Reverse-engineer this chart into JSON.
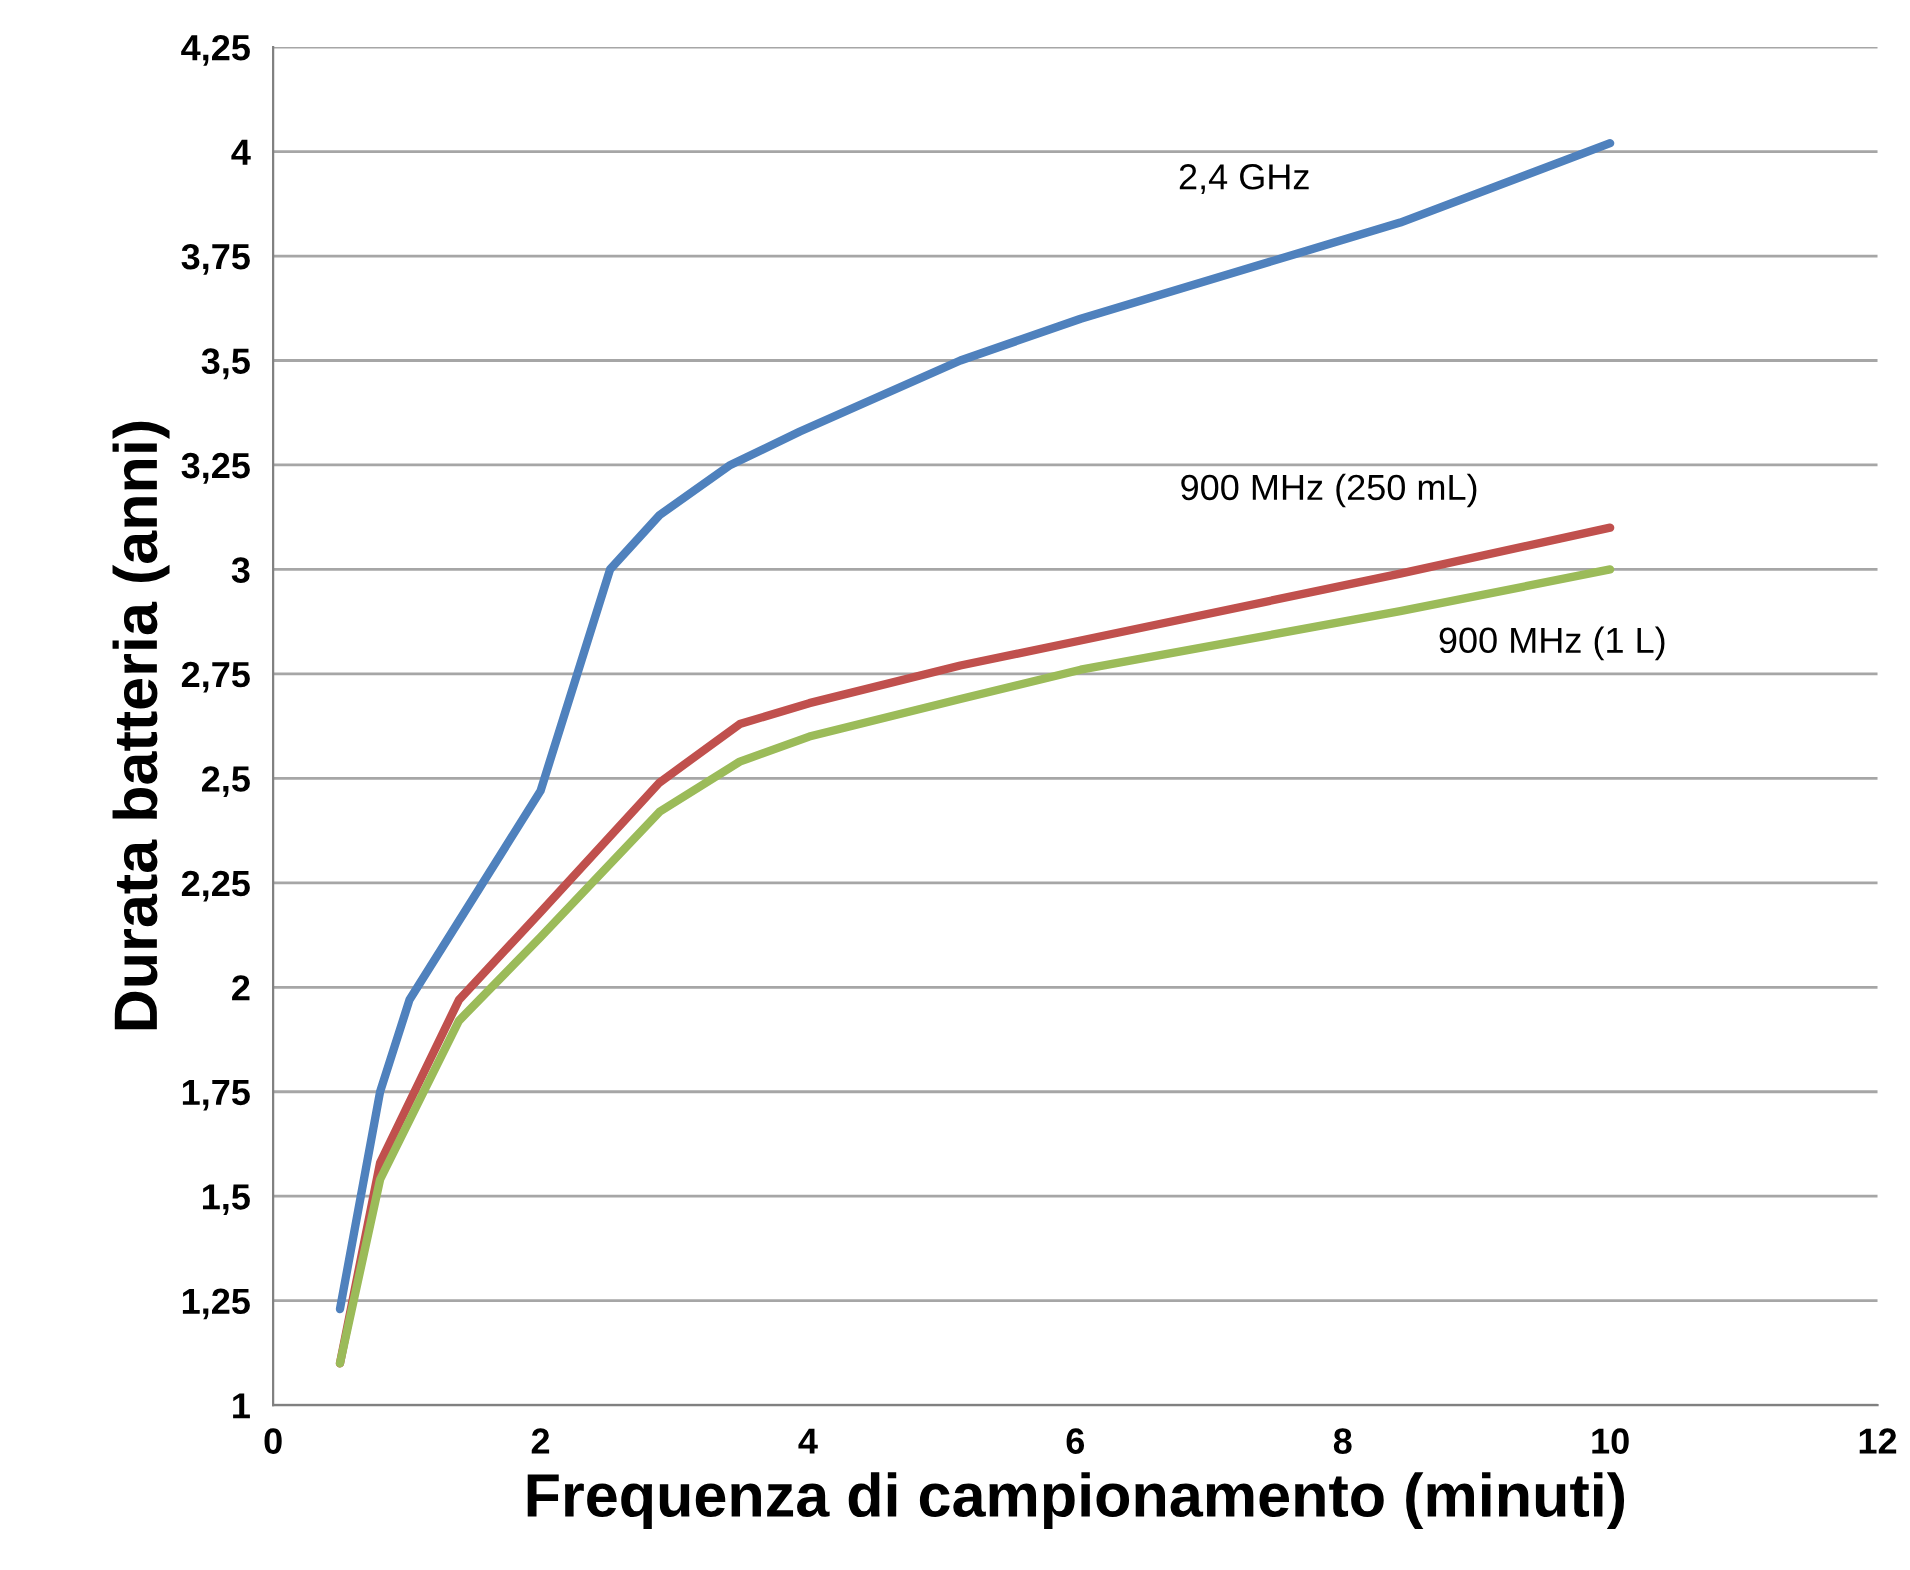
{
  "chart_data": {
    "type": "line",
    "xlabel": "Frequenza di campionamento (minuti)",
    "ylabel": "Durata batteria (anni)",
    "xlim": [
      0,
      12
    ],
    "xticks": [
      0,
      2,
      4,
      6,
      8,
      10,
      12
    ],
    "ylim": [
      1,
      4.25
    ],
    "yticks": [
      {
        "value": 1,
        "label": "1"
      },
      {
        "value": 1.25,
        "label": "1,25"
      },
      {
        "value": 1.5,
        "label": "1,5"
      },
      {
        "value": 1.75,
        "label": "1,75"
      },
      {
        "value": 2,
        "label": "2"
      },
      {
        "value": 2.25,
        "label": "2,25"
      },
      {
        "value": 2.5,
        "label": "2,5"
      },
      {
        "value": 2.75,
        "label": "2,75"
      },
      {
        "value": 3,
        "label": "3"
      },
      {
        "value": 3.25,
        "label": "3,25"
      },
      {
        "value": 3.5,
        "label": "3,5"
      },
      {
        "value": 3.75,
        "label": "3,75"
      },
      {
        "value": 4,
        "label": "4"
      },
      {
        "value": 4.25,
        "label": "4,25"
      }
    ],
    "grid": "y",
    "legend": false,
    "marker": "none",
    "line_style": "solid",
    "series": [
      {
        "name": "2,4 GHz",
        "color": "#4f81bd",
        "x": [
          0.5,
          0.8,
          1.02,
          2,
          2.52,
          2.89,
          3.42,
          3.94,
          5.14,
          6.04,
          8.43,
          10
        ],
        "values": [
          1.23,
          1.75,
          1.97,
          2.47,
          3.0,
          3.13,
          3.25,
          3.33,
          3.5,
          3.6,
          3.83,
          4.02
        ]
      },
      {
        "name": "900 MHz (250 mL)",
        "color": "#c0504d",
        "x": [
          0.5,
          0.8,
          1.39,
          2,
          2.89,
          3.49,
          4.01,
          5.14,
          6.04,
          8.43,
          10
        ],
        "values": [
          1.1,
          1.58,
          1.97,
          2.18,
          2.49,
          2.63,
          2.68,
          2.77,
          2.83,
          2.99,
          3.1
        ]
      },
      {
        "name": "900 MHz (1 L)",
        "color": "#9bbb59",
        "x": [
          0.5,
          0.8,
          1.39,
          2,
          2.89,
          3.49,
          4.01,
          5.14,
          6.04,
          8.43,
          10
        ],
        "values": [
          1.1,
          1.54,
          1.92,
          2.12,
          2.42,
          2.54,
          2.6,
          2.69,
          2.76,
          2.9,
          3.0
        ]
      }
    ]
  }
}
